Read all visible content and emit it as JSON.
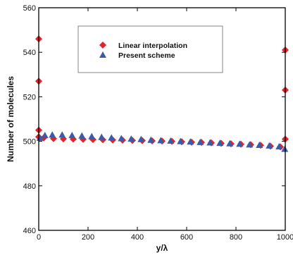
{
  "chart_data": {
    "type": "scatter",
    "title": "",
    "xlabel": "y/λ",
    "ylabel": "Number of molecules",
    "xlim": [
      0,
      1000
    ],
    "ylim": [
      460,
      560
    ],
    "xticks": [
      0,
      200,
      400,
      600,
      800,
      1000
    ],
    "yticks": [
      460,
      480,
      500,
      520,
      540,
      560
    ],
    "xtick_labels": [
      "0",
      "200",
      "400",
      "600",
      "800",
      "1000"
    ],
    "ytick_labels": [
      "460",
      "480",
      "500",
      "520",
      "540",
      "560"
    ],
    "grid": false,
    "legend_position": "top-center",
    "series": [
      {
        "name": "Linear interpolation",
        "marker": "diamond",
        "color": "#e0242b",
        "x": [
          0,
          0,
          0,
          0,
          20,
          60,
          100,
          140,
          180,
          220,
          260,
          300,
          340,
          380,
          420,
          460,
          500,
          540,
          580,
          620,
          660,
          700,
          740,
          780,
          820,
          860,
          900,
          940,
          980,
          1000,
          1000,
          1000
        ],
        "y": [
          546,
          527,
          505,
          502,
          501.5,
          501.2,
          501.1,
          501.0,
          500.9,
          500.8,
          500.7,
          500.6,
          500.5,
          500.4,
          500.3,
          500.2,
          500.1,
          500.0,
          499.8,
          499.6,
          499.5,
          499.3,
          499.1,
          498.9,
          498.7,
          498.5,
          498.2,
          497.8,
          497.5,
          501,
          523,
          541
        ]
      },
      {
        "name": "Present scheme",
        "marker": "triangle",
        "color": "#3b5aa8",
        "x": [
          5,
          25,
          55,
          95,
          135,
          175,
          215,
          255,
          295,
          335,
          375,
          415,
          455,
          495,
          535,
          575,
          615,
          655,
          695,
          735,
          775,
          815,
          855,
          895,
          935,
          975,
          998
        ],
        "y": [
          501.5,
          502.7,
          502.9,
          502.9,
          502.7,
          502.5,
          502.2,
          501.9,
          501.6,
          501.3,
          501.1,
          500.9,
          500.6,
          500.4,
          500.2,
          500.0,
          499.8,
          499.6,
          499.4,
          499.2,
          499.0,
          498.8,
          498.5,
          498.3,
          498.0,
          497.6,
          496.5
        ]
      }
    ]
  }
}
